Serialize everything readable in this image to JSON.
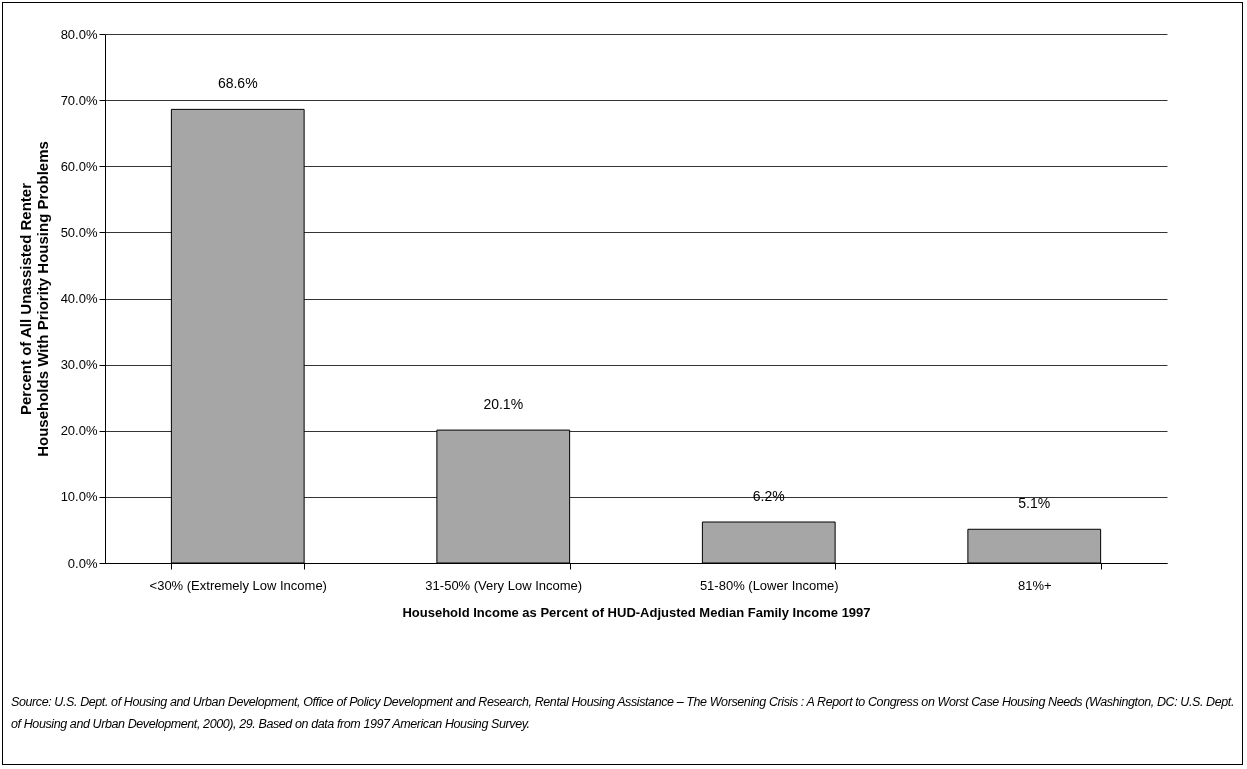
{
  "chart_data": {
    "type": "bar",
    "xlabel": "Household Income as Percent of HUD-Adjusted Median Family Income 1997",
    "ylabel": "Percent of All Unassisted Renter Households With Priority Housing Problems",
    "categories": [
      "<30% (Extremely Low Income)",
      "31-50% (Very Low Income)",
      "51-80% (Lower Income)",
      "81%+"
    ],
    "values": [
      68.6,
      20.1,
      6.2,
      5.1
    ],
    "value_labels": [
      "68.6%",
      "20.1%",
      "6.2%",
      "5.1%"
    ],
    "color": "#a6a6a6",
    "ylim": [
      0,
      80
    ],
    "yticks": [
      {
        "value": 0,
        "label": "0.0%"
      },
      {
        "value": 10,
        "label": "10.0%"
      },
      {
        "value": 20,
        "label": "20.0%"
      },
      {
        "value": 30,
        "label": "30.0%"
      },
      {
        "value": 40,
        "label": "40.0%"
      },
      {
        "value": 50,
        "label": "50.0%"
      },
      {
        "value": 60,
        "label": "60.0%"
      },
      {
        "value": 70,
        "label": "70.0%"
      },
      {
        "value": 80,
        "label": "80.0%"
      }
    ],
    "grid": "y",
    "annotations": [
      "Source: U.S. Dept. of Housing and Urban Development, Office of Policy Development and Research, Rental Housing Assistance – The Worsening Crisis : A Report to Congress on Worst Case Housing Needs (Washington, DC: U.S. Dept. of Housing and Urban Development, 2000), 29. Based on data from 1997 American Housing Survey."
    ]
  }
}
